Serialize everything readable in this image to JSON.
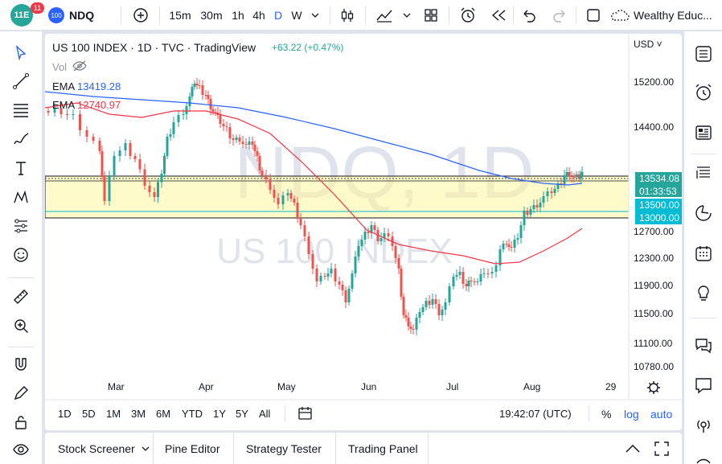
{
  "header": {
    "notification_count": "11",
    "logo_text": "11E",
    "symbol_badge": "100",
    "symbol": "NDQ",
    "intervals": [
      "15m",
      "30m",
      "1h",
      "4h",
      "D",
      "W"
    ],
    "active_interval": "D",
    "account_name": "Wealthy Educ..."
  },
  "legend": {
    "title": "US 100 INDEX · 1D · TVC · TradingView",
    "change": "+63.22 (+0.47%)",
    "vol_label": "Vol",
    "ema1_label": "EMA",
    "ema1_value": "13419.28",
    "ema2_label": "EMA",
    "ema2_value": "12740.97"
  },
  "watermark": {
    "symbol": "NDQ, 1D",
    "name": "US 100 INDEX"
  },
  "price_axis": {
    "currency": "USD",
    "ticks": [
      "15200.00",
      "14400.00",
      "12700.00",
      "12300.00",
      "11900.00",
      "11500.00",
      "11100.00",
      "10780.00"
    ],
    "last_price": "13534.08",
    "countdown": "01:33:53",
    "level1": "13500.00",
    "level2": "13000.00"
  },
  "time_axis": {
    "labels": [
      "Mar",
      "Apr",
      "May",
      "Jun",
      "Jul",
      "Aug",
      "29"
    ]
  },
  "range_bar": {
    "ranges": [
      "1D",
      "5D",
      "1M",
      "3M",
      "6M",
      "YTD",
      "1Y",
      "5Y",
      "All"
    ],
    "clock": "19:42:07 (UTC)",
    "percent": "%",
    "log": "log",
    "auto": "auto"
  },
  "bottom_tabs": [
    "Stock Screener",
    "Pine Editor",
    "Strategy Tester",
    "Trading Panel"
  ],
  "colors": {
    "up": "#26a69a",
    "down": "#ef5350",
    "ema_fast": "#2962ff",
    "ema_slow": "#f23645",
    "zone": "#fff59d",
    "accent": "#2962ff",
    "level": "#00bcd4"
  }
}
